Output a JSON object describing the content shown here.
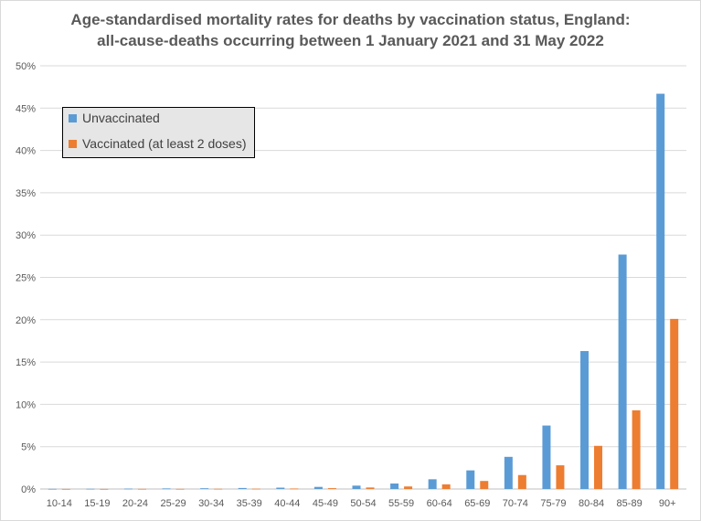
{
  "chart_data": {
    "type": "bar",
    "title_line1": "Age-standardised mortality rates for deaths by vaccination status, England:",
    "title_line2": "all-cause-deaths occurring between 1 January 2021 and 31 May 2022",
    "xlabel": "",
    "ylabel": "",
    "ylim": [
      0,
      50
    ],
    "yticks": [
      "0%",
      "5%",
      "10%",
      "15%",
      "20%",
      "25%",
      "30%",
      "35%",
      "40%",
      "45%",
      "50%"
    ],
    "grid": true,
    "legend_position": "top-left",
    "categories": [
      "10-14",
      "15-19",
      "20-24",
      "25-29",
      "30-34",
      "35-39",
      "40-44",
      "45-49",
      "50-54",
      "55-59",
      "60-64",
      "65-69",
      "70-74",
      "75-79",
      "80-84",
      "85-89",
      "90+"
    ],
    "series": [
      {
        "name": "Unvaccinated",
        "color": "#5b9bd5",
        "values": [
          0.02,
          0.03,
          0.05,
          0.07,
          0.09,
          0.12,
          0.16,
          0.25,
          0.4,
          0.65,
          1.15,
          2.2,
          3.8,
          7.5,
          16.3,
          27.7,
          46.7
        ]
      },
      {
        "name": "Vaccinated (at least 2 doses)",
        "color": "#ed7d31",
        "values": [
          0.01,
          0.01,
          0.02,
          0.02,
          0.03,
          0.04,
          0.06,
          0.1,
          0.18,
          0.3,
          0.55,
          0.95,
          1.65,
          2.8,
          5.1,
          9.3,
          20.1
        ]
      }
    ]
  }
}
